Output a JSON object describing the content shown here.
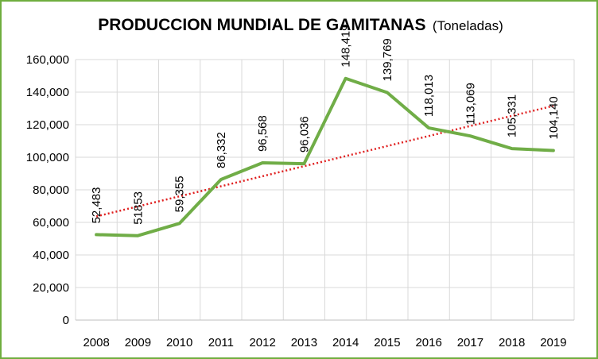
{
  "chart_data": {
    "type": "line",
    "title": "PRODUCCION MUNDIAL DE GAMITANAS",
    "subtitle": "(Toneladas)",
    "categories": [
      "2008",
      "2009",
      "2010",
      "2011",
      "2012",
      "2013",
      "2014",
      "2015",
      "2016",
      "2017",
      "2018",
      "2019"
    ],
    "series": [
      {
        "values": [
          52483,
          51853,
          59355,
          86332,
          96568,
          96036,
          148419,
          139769,
          118013,
          113069,
          105331,
          104140
        ],
        "labels": [
          "52,483",
          "51853",
          "59,355",
          "86,332",
          "96,568",
          "96,036",
          "148,419",
          "139,769",
          "118,013",
          "113,069",
          "105,331",
          "104,140"
        ],
        "color": "#70ad47"
      }
    ],
    "trendline": {
      "type": "linear",
      "color": "#e02020",
      "style": "dotted"
    },
    "ylim": [
      0,
      160000
    ],
    "yticks": [
      "0",
      "20,000",
      "40,000",
      "60,000",
      "80,000",
      "100,000",
      "120,000",
      "140,000",
      "160,000"
    ],
    "grid": true,
    "legend": "none"
  },
  "colors": {
    "border": "#6fae3e",
    "grid": "#d9d9d9"
  }
}
